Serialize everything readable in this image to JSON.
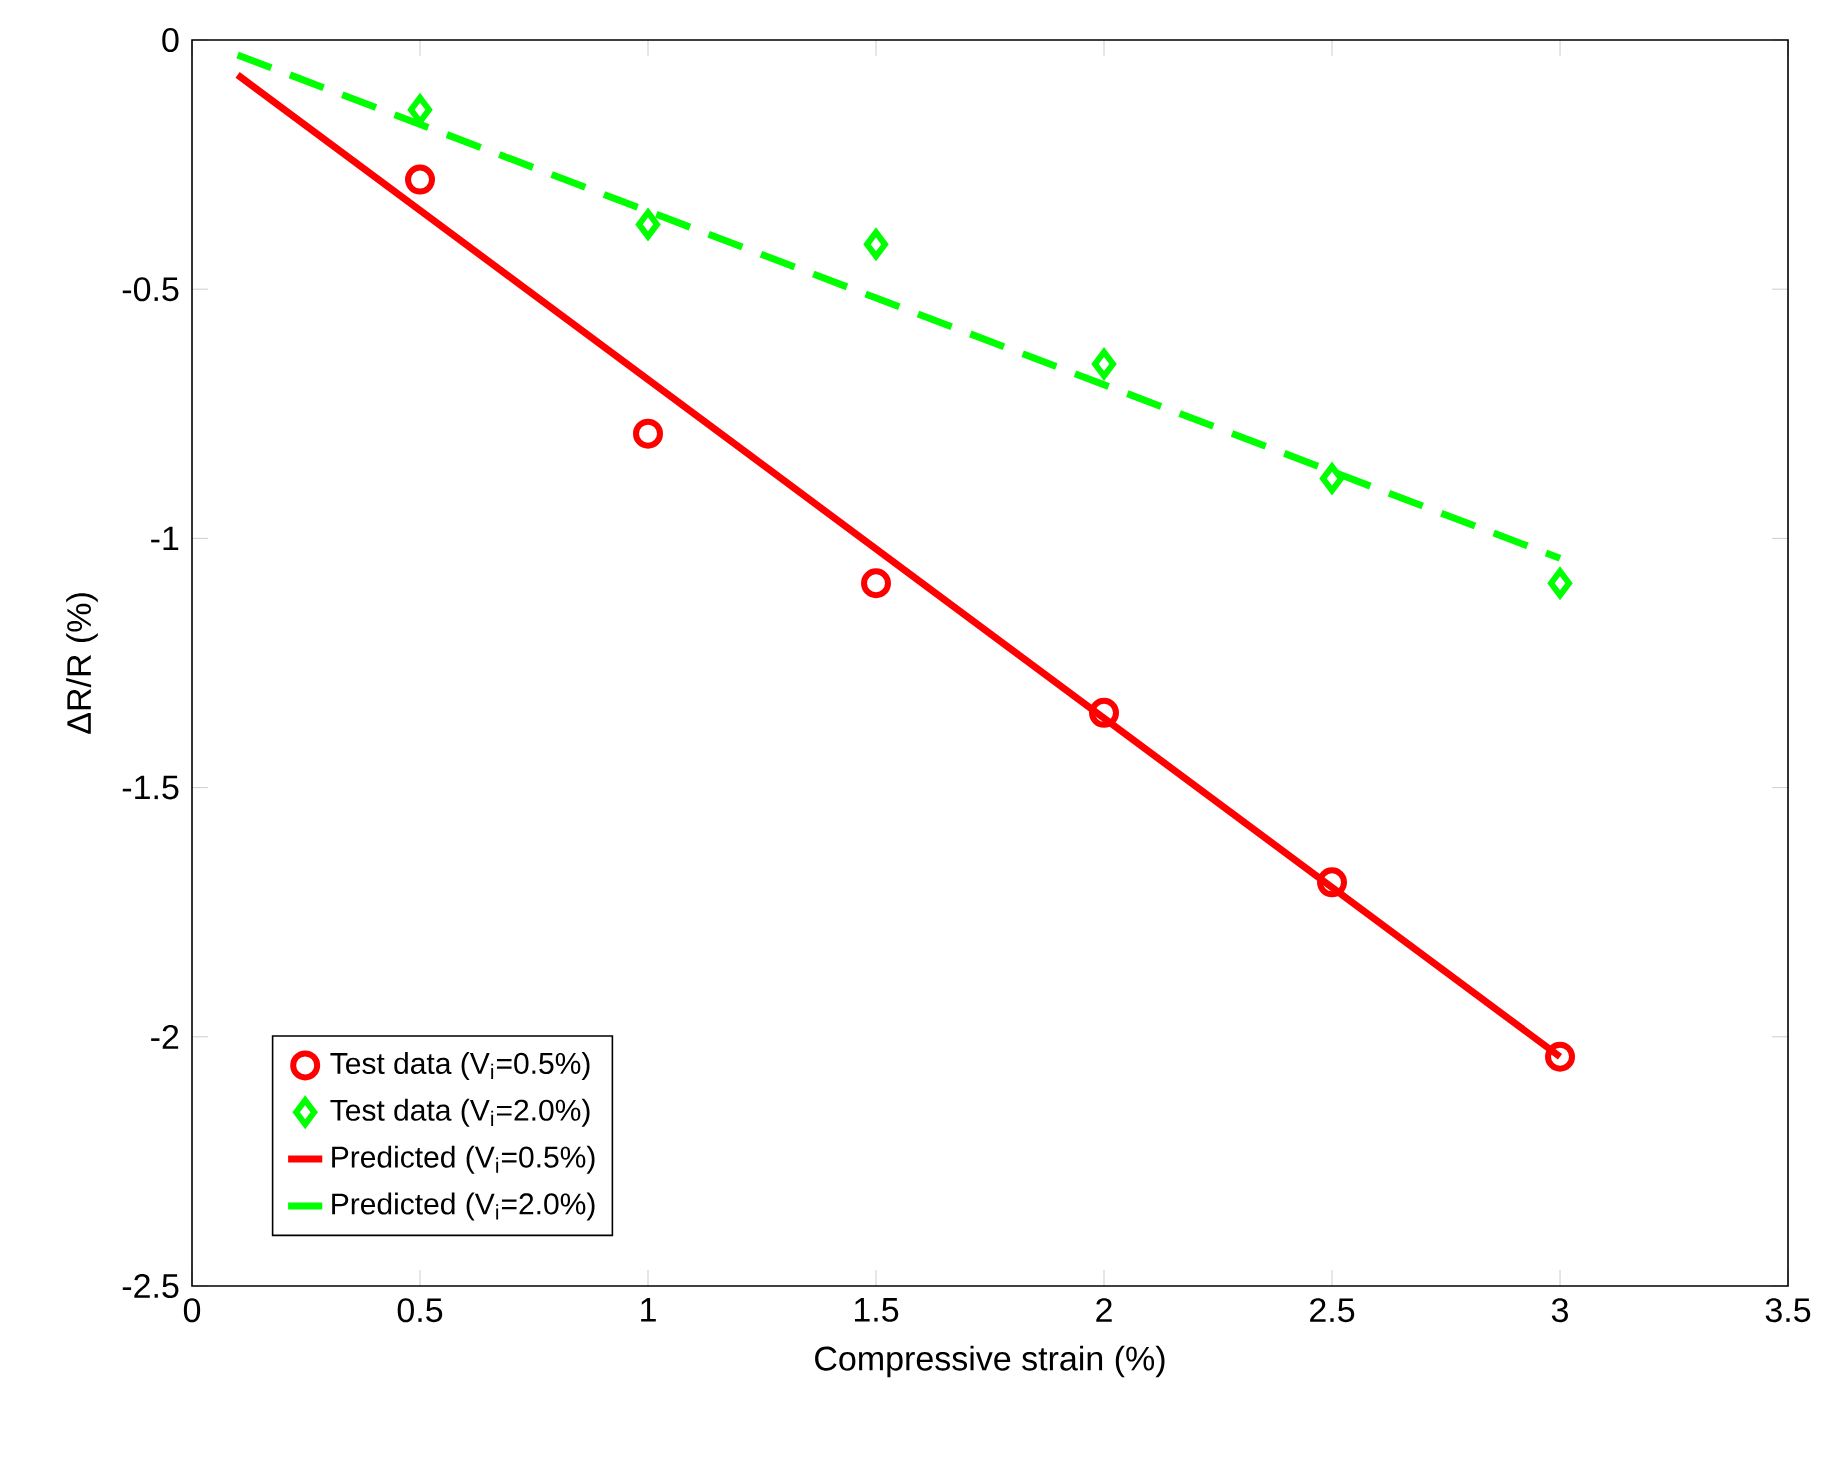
{
  "chart_data": {
    "type": "scatter",
    "xlabel": "Compressive strain (%)",
    "ylabel": "ΔR/R (%)",
    "xlim": [
      0,
      3.5
    ],
    "ylim": [
      -2.5,
      0
    ],
    "xticks": [
      0,
      0.5,
      1,
      1.5,
      2,
      2.5,
      3,
      3.5
    ],
    "yticks": [
      -2.5,
      -2,
      -1.5,
      -1,
      -0.5,
      0
    ],
    "legend": "bottom left",
    "grid": false,
    "series": [
      {
        "name": "Test data (V$_{i}$=0.5%)",
        "marker": "circle",
        "color": "#ff0000",
        "x": [
          0.5,
          1,
          1.5,
          2,
          2.5,
          3
        ],
        "values": [
          -0.28,
          -0.79,
          -1.09,
          -1.35,
          -1.69,
          -2.04
        ]
      },
      {
        "name": "Test data (V$_{i}$=2.0%)",
        "marker": "diamond",
        "color": "#00ff00",
        "x": [
          0.5,
          1,
          1.5,
          2,
          2.5,
          3
        ],
        "values": [
          -0.14,
          -0.37,
          -0.41,
          -0.65,
          -0.88,
          -1.09
        ]
      },
      {
        "name": "Predicted (V$_{i}$=0.5%)",
        "type": "line",
        "line_style": "solid",
        "color": "#ff0000",
        "x": [
          0.1,
          3
        ],
        "values": [
          -0.07,
          -2.04
        ]
      },
      {
        "name": "Predicted (V$_{i}$=2.0%)",
        "type": "line",
        "line_style": "dashed",
        "color": "#00ff00",
        "x": [
          0.1,
          3
        ],
        "values": [
          -0.03,
          -1.04
        ]
      }
    ]
  }
}
